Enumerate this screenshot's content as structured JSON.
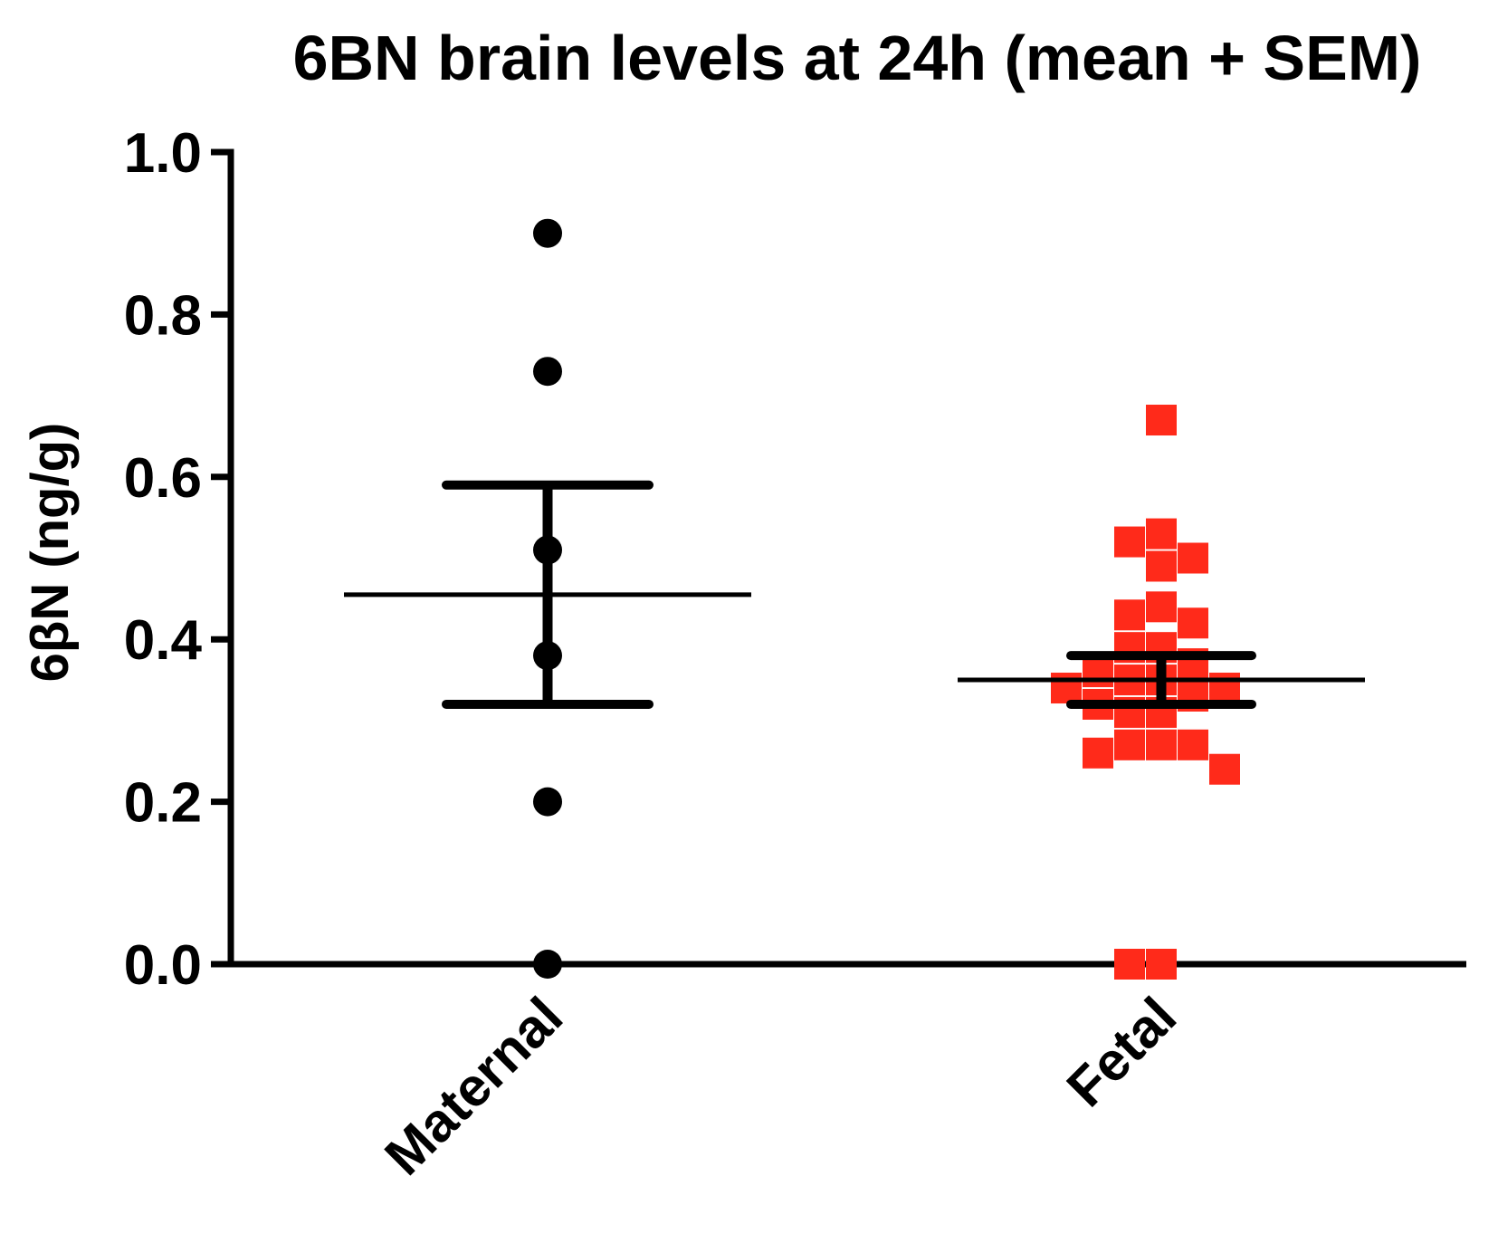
{
  "chart_data": {
    "type": "scatter",
    "title": "6BN brain levels at 24h (mean + SEM)",
    "xlabel": "",
    "ylabel": "6βN (ng/g)",
    "ylim": [
      0,
      1.0
    ],
    "yticks": [
      0.0,
      0.2,
      0.4,
      0.6,
      0.8,
      1.0
    ],
    "ytick_labels": [
      "0.0",
      "0.2",
      "0.4",
      "0.6",
      "0.8",
      "1.0"
    ],
    "categories": [
      "Maternal",
      "Fetal"
    ],
    "grid": false,
    "legend": "none",
    "groups": [
      {
        "category": "Maternal",
        "marker": "circle",
        "color": "#000000",
        "values": [
          0.9,
          0.73,
          0.51,
          0.38,
          0.2,
          0.0
        ],
        "mean": 0.455,
        "sem_low": 0.32,
        "sem_high": 0.59
      },
      {
        "category": "Fetal",
        "marker": "square",
        "color": "#ff2a1a",
        "values": [
          0.67,
          0.53,
          0.52,
          0.5,
          0.49,
          0.43,
          0.44,
          0.42,
          0.39,
          0.39,
          0.37,
          0.36,
          0.35,
          0.35,
          0.34,
          0.34,
          0.33,
          0.32,
          0.31,
          0.31,
          0.27,
          0.27,
          0.27,
          0.26,
          0.24,
          0.0,
          0.0
        ],
        "mean": 0.35,
        "sem_low": 0.32,
        "sem_high": 0.38
      }
    ]
  }
}
